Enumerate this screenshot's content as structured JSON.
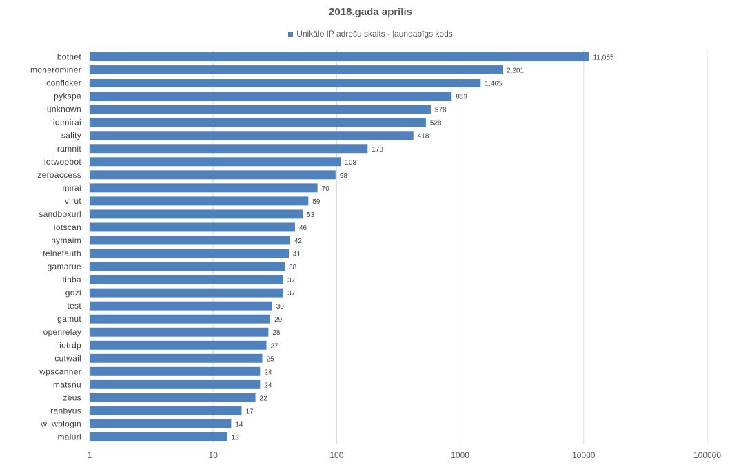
{
  "chart_data": {
    "type": "bar",
    "orientation": "horizontal",
    "title": "2018.gada aprīlis",
    "legend_position": "top",
    "x_scale": "log",
    "xlim": [
      1,
      100000
    ],
    "grid": true,
    "bar_color": "#4f81bd",
    "grid_color": "#d9d9d9",
    "x_ticks": [
      "1",
      "10",
      "100",
      "1000",
      "10000",
      "100000"
    ],
    "categories": [
      "botnet",
      "monerominer",
      "conficker",
      "pykspa",
      "unknown",
      "iotmirai",
      "sality",
      "ramnit",
      "iotwopbot",
      "zeroaccess",
      "mirai",
      "virut",
      "sandboxurl",
      "iotscan",
      "nymaim",
      "telnetauth",
      "gamarue",
      "tinba",
      "gozi",
      "test",
      "gamut",
      "openrelay",
      "iotrdp",
      "cutwail",
      "wpscanner",
      "matsnu",
      "zeus",
      "ranbyus",
      "w_wplogin",
      "malurl"
    ],
    "series": [
      {
        "name": "Unikālo IP adrešu skaits -  ļaundabīgs kods",
        "values": [
          11055,
          2201,
          1465,
          853,
          578,
          528,
          418,
          178,
          108,
          98,
          70,
          59,
          53,
          46,
          42,
          41,
          38,
          37,
          37,
          30,
          29,
          28,
          27,
          25,
          24,
          24,
          22,
          17,
          14,
          13
        ],
        "labels": [
          "11,055",
          "2,201",
          "1,465",
          "853",
          "578",
          "528",
          "418",
          "178",
          "108",
          "98",
          "70",
          "59",
          "53",
          "46",
          "42",
          "41",
          "38",
          "37",
          "37",
          "30",
          "29",
          "28",
          "27",
          "25",
          "24",
          "24",
          "22",
          "17",
          "14",
          "13"
        ]
      }
    ]
  }
}
